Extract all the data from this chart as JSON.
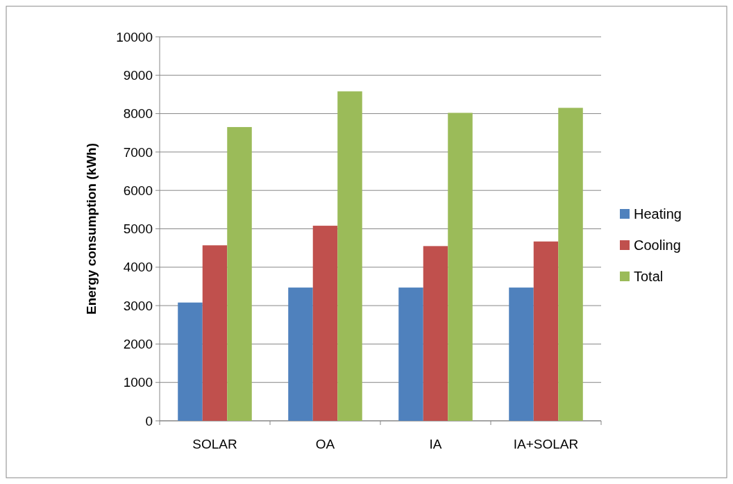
{
  "chart_data": {
    "type": "bar",
    "ylabel": "Energy consumption (kWh)",
    "categories": [
      "SOLAR",
      "OA",
      "IA",
      "IA+SOLAR"
    ],
    "series": [
      {
        "name": "Heating",
        "color": "#4f81bd",
        "values": [
          3080,
          3470,
          3470,
          3470
        ]
      },
      {
        "name": "Cooling",
        "color": "#c0504d",
        "values": [
          4570,
          5080,
          4550,
          4670
        ]
      },
      {
        "name": "Total",
        "color": "#9bbb59",
        "values": [
          7650,
          8580,
          8020,
          8150
        ]
      }
    ],
    "ylim": [
      0,
      10000
    ],
    "yticks": [
      0,
      1000,
      2000,
      3000,
      4000,
      5000,
      6000,
      7000,
      8000,
      9000,
      10000
    ],
    "grid": "y",
    "legend": "right"
  }
}
